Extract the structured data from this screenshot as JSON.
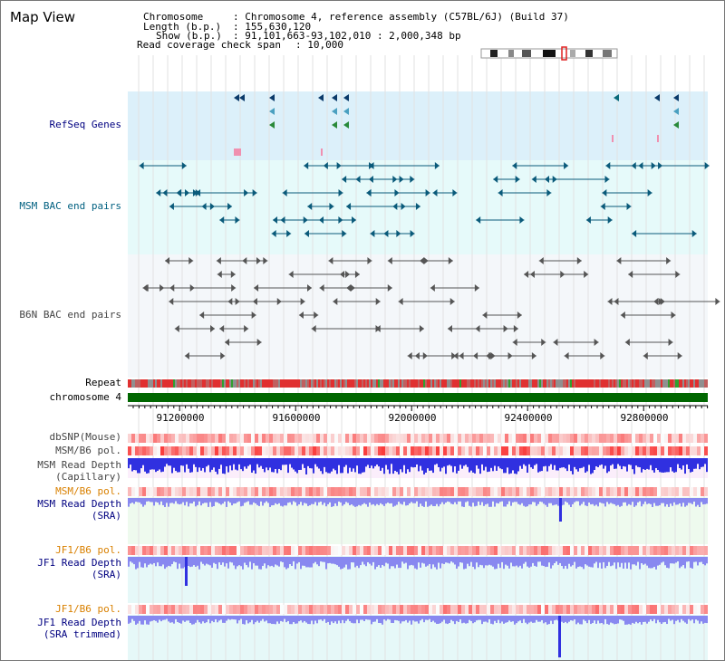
{
  "view": {
    "title": "Map View"
  },
  "info": {
    "chromosome_key": "Chromosome",
    "chromosome_value": ": Chromosome 4, reference assembly (C57BL/6J) (Build 37)",
    "length_key": "Length (b.p.)",
    "length_value": ": 155,630,120",
    "show_key": "Show (b.p.)",
    "show_value": ": 91,101,663-93,102,010 : 2,000,348 bp",
    "coverage_key": "Read coverage check span",
    "coverage_value": ": 10,000"
  },
  "tracks": {
    "refseq": "RefSeq Genes",
    "msm_bac": "MSM BAC end pairs",
    "b6n_bac": "B6N BAC end pairs",
    "repeat": "Repeat",
    "chromosome": "chromosome 4",
    "dbsnp": "dbSNP(Mouse)",
    "msm_b6_pol_1": "MSM/B6 pol.",
    "msm_read_depth_cap_1": "MSM Read Depth",
    "msm_read_depth_cap_2": "(Capillary)",
    "msm_b6_pol_2": "MSM/B6 pol.",
    "msm_read_depth_sra_1": "MSM Read Depth",
    "msm_read_depth_sra_2": "(SRA)",
    "jf1_b6_pol_1": "JF1/B6 pol.",
    "jf1_read_depth_sra_1": "JF1 Read Depth",
    "jf1_read_depth_sra_2": "(SRA)",
    "jf1_b6_pol_2": "JF1/B6 pol.",
    "jf1_read_depth_trim_1": "JF1 Read Depth",
    "jf1_read_depth_trim_2": "(SRA trimmed)"
  },
  "axis": {
    "ticks": [
      "91200000",
      "91600000",
      "92000000",
      "92400000",
      "92800000"
    ]
  },
  "colors": {
    "refseq_bg": "#dcf0fa",
    "msm_bg": "#e6fafa",
    "b6n_bg": "#f4f7fa",
    "chromosome_bar": "#006600",
    "depth_bar": "#3030e0",
    "depth_soft": "#8888f0",
    "pol_red": "#e85050",
    "msm_feature": "#0a5a7a",
    "b6n_feature": "#555555"
  }
}
